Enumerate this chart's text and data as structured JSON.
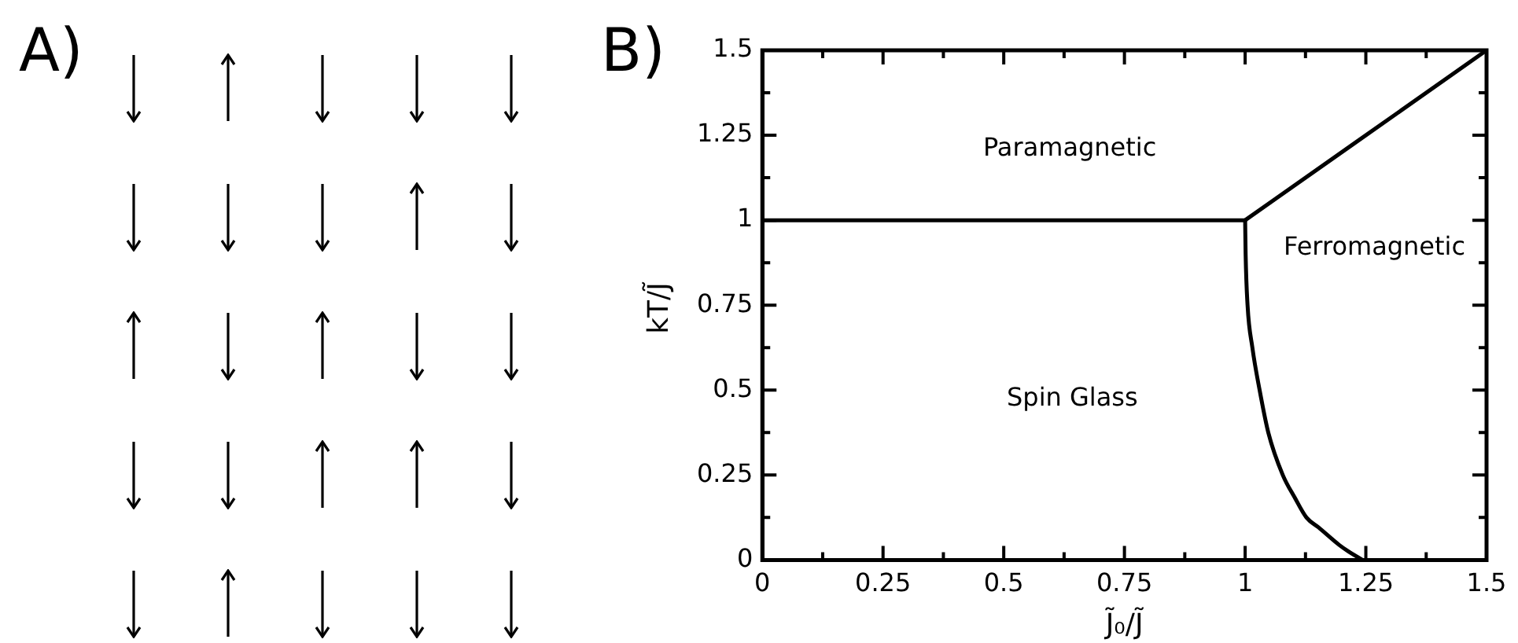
{
  "chart_data": {
    "type": "line",
    "xlabel": "J̃₀/J̃",
    "ylabel": "kT/J̃",
    "xlim": [
      0,
      1.5
    ],
    "ylim": [
      0,
      1.5
    ],
    "xticks": [
      0,
      {
        "value": 0.125,
        "label": null
      },
      0.25,
      {
        "value": 0.375,
        "label": null
      },
      0.5,
      {
        "value": 0.625,
        "label": null
      },
      0.75,
      {
        "value": 0.875,
        "label": null
      },
      1,
      {
        "value": 1.125,
        "label": null
      },
      1.25,
      {
        "value": 1.375,
        "label": null
      },
      1.5
    ],
    "yticks": [
      0,
      {
        "value": 0.125,
        "label": null
      },
      0.25,
      {
        "value": 0.375,
        "label": null
      },
      0.5,
      {
        "value": 0.625,
        "label": null
      },
      0.75,
      {
        "value": 0.875,
        "label": null
      },
      1,
      {
        "value": 1.125,
        "label": null
      },
      1.25,
      {
        "value": 1.375,
        "label": null
      },
      1.5
    ],
    "series": [
      {
        "color": "#000000",
        "x": [
          0,
          1
        ],
        "values": [
          1,
          1
        ]
      },
      {
        "color": "#000000",
        "x": [
          1,
          1.5
        ],
        "values": [
          1,
          1.5
        ]
      },
      {
        "color": "#000000",
        "x": [
          1,
          1.001,
          1.005,
          1.015,
          1.03,
          1.048,
          1.078,
          1.103,
          1.127,
          1.152,
          1.195,
          1.213,
          1.243
        ],
        "values": [
          1,
          0.9,
          0.75,
          0.625,
          0.5,
          0.375,
          0.25,
          0.183,
          0.125,
          0.096,
          0.044,
          0.026,
          0
        ]
      }
    ],
    "annotations": [
      "A)",
      "B)",
      "Paramagnetic",
      "Spin Glass",
      "Ferromagnetic"
    ],
    "grid": false,
    "legend": false,
    "marker": "none",
    "line_style": "solid"
  }
}
